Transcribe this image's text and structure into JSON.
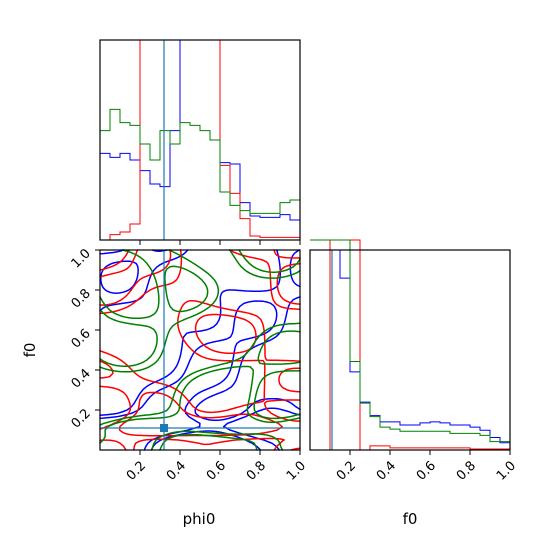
{
  "chart_data": {
    "type": "corner",
    "parameters": [
      "phi0",
      "f0"
    ],
    "xlabels": {
      "bottom_left": "phi0",
      "bottom_right": "f0"
    },
    "ylabel_left": "f0",
    "phi0_ticks": [
      "0.2",
      "0.4",
      "0.6",
      "0.8",
      "1.0"
    ],
    "f0_ticks": [
      "0.2",
      "0.4",
      "0.6",
      "0.8",
      "1.0"
    ],
    "range": [
      0,
      1
    ],
    "bins": [
      0.0,
      0.05,
      0.1,
      0.15,
      0.2,
      0.25,
      0.3,
      0.35,
      0.4,
      0.45,
      0.5,
      0.55,
      0.6,
      0.65,
      0.7,
      0.75,
      0.8,
      0.85,
      0.9,
      0.95,
      1.0
    ],
    "truth": {
      "phi0": 0.32,
      "f0": 0.11,
      "color": "#1f77b4"
    },
    "series": [
      {
        "color": "#0000ff",
        "phi0_hist": [
          0.65,
          0.62,
          0.65,
          0.6,
          0.52,
          0.42,
          0.4,
          0.82,
          1.5,
          1.5,
          1.5,
          1.5,
          0.58,
          0.57,
          0.28,
          0.18,
          0.17,
          0.17,
          0.19,
          0.15
        ],
        "f0_hist": [
          1.92,
          1.92,
          1.92,
          1.65,
          0.75,
          0.46,
          0.33,
          0.27,
          0.27,
          0.24,
          0.24,
          0.26,
          0.27,
          0.26,
          0.24,
          0.24,
          0.22,
          0.19,
          0.12,
          0.07
        ]
      },
      {
        "color": "#ff0000",
        "phi0_hist": [
          0.0,
          0.04,
          0.06,
          0.12,
          1.5,
          1.5,
          1.5,
          1.5,
          1.5,
          1.5,
          1.5,
          1.5,
          0.56,
          0.35,
          0.16,
          0.03,
          0.02,
          0.02,
          0.02,
          0.02
        ],
        "f0_hist": [
          0.0,
          0.0,
          3.6,
          3.6,
          3.6,
          0.0,
          0.04,
          0.04,
          0.02,
          0.02,
          0.02,
          0.02,
          0.02,
          0.02,
          0.02,
          0.02,
          0.01,
          0.01,
          0.01,
          0.01
        ]
      },
      {
        "color": "#008000",
        "phi0_hist": [
          0.82,
          0.98,
          0.88,
          0.86,
          0.72,
          0.6,
          0.82,
          0.72,
          0.88,
          0.86,
          0.82,
          0.75,
          0.36,
          0.26,
          0.22,
          0.2,
          0.2,
          0.2,
          0.28,
          0.3
        ],
        "f0_hist": [
          2.5,
          2.55,
          2.5,
          2.9,
          0.85,
          0.45,
          0.32,
          0.22,
          0.2,
          0.18,
          0.18,
          0.18,
          0.18,
          0.18,
          0.16,
          0.16,
          0.16,
          0.14,
          0.08,
          0.08
        ]
      }
    ]
  }
}
